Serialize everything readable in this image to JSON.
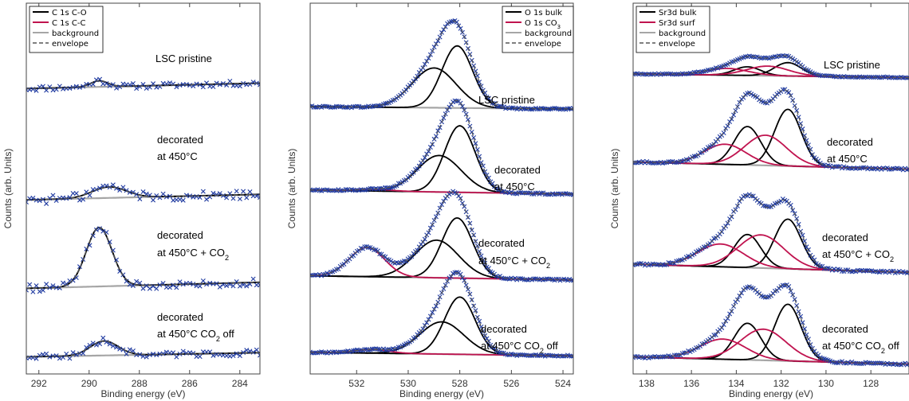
{
  "colors": {
    "peak_black": "#000000",
    "peak_red": "#c0134f",
    "background": "#a6a6a6",
    "envelope": "#555555",
    "data_points": "#1f3aa0",
    "axis": "#444444"
  },
  "chart_data": [
    {
      "type": "scatter",
      "id": "c1s",
      "xlabel": "Binding energy (eV)",
      "ylabel": "Counts (arb. Units)",
      "xlim": [
        292.5,
        283.2
      ],
      "xticks": [
        292,
        290,
        288,
        286,
        284
      ],
      "x_reversed": true,
      "legend": {
        "placement": "top-left",
        "entries": [
          {
            "label": "C 1s C-O",
            "style": "black"
          },
          {
            "label": "C 1s C-C",
            "style": "red"
          },
          {
            "label": "background",
            "style": "gray"
          },
          {
            "label": "envelope",
            "style": "dashed"
          }
        ]
      },
      "spectra": [
        {
          "label_lines": [
            "LSC pristine"
          ],
          "baseline": [
            0.22,
            0.3
          ],
          "noise": 0.04,
          "peaks": [
            {
              "center": 289.6,
              "fwhm": 0.8,
              "height": 0.09,
              "color": "black"
            }
          ]
        },
        {
          "label_lines": [
            "decorated",
            "at 450°C"
          ],
          "baseline": [
            0.12,
            0.18
          ],
          "noise": 0.05,
          "peaks": [
            {
              "center": 289.2,
              "fwhm": 1.6,
              "height": 0.12,
              "color": "black"
            }
          ]
        },
        {
          "label_lines": [
            "decorated",
            "at 450°C + CO2"
          ],
          "baseline": [
            0.08,
            0.16
          ],
          "noise": 0.05,
          "peaks": [
            {
              "center": 289.6,
              "fwhm": 1.2,
              "height": 0.78,
              "color": "black"
            }
          ]
        },
        {
          "label_lines": [
            "decorated",
            "at 450°C CO2 off"
          ],
          "baseline": [
            0.1,
            0.18
          ],
          "noise": 0.06,
          "peaks": [
            {
              "center": 289.4,
              "fwhm": 1.3,
              "height": 0.28,
              "color": "black"
            }
          ]
        }
      ]
    },
    {
      "type": "scatter",
      "id": "o1s",
      "xlabel": "Binding energy (eV)",
      "ylabel": "Counts (arb. Units)",
      "xlim": [
        533.8,
        523.6
      ],
      "xticks": [
        532,
        530,
        528,
        526,
        524
      ],
      "x_reversed": true,
      "legend": {
        "placement": "top-right",
        "entries": [
          {
            "label": "O 1s bulk",
            "style": "black"
          },
          {
            "label": "O 1s CO3",
            "style": "red"
          },
          {
            "label": "background",
            "style": "gray"
          },
          {
            "label": "envelope",
            "style": "dashed"
          }
        ]
      },
      "spectra": [
        {
          "label_lines": [
            "LSC pristine"
          ],
          "baseline": [
            0.06,
            0.03
          ],
          "noise": 0.01,
          "peaks": [
            {
              "center": 528.1,
              "fwhm": 1.4,
              "height": 0.78,
              "color": "black"
            },
            {
              "center": 529.0,
              "fwhm": 2.0,
              "height": 0.5,
              "color": "black"
            }
          ]
        },
        {
          "label_lines": [
            "decorated",
            "at 450°C"
          ],
          "baseline": [
            0.08,
            0.03
          ],
          "noise": 0.01,
          "peaks": [
            {
              "center": 528.0,
              "fwhm": 1.4,
              "height": 0.82,
              "color": "black"
            },
            {
              "center": 528.8,
              "fwhm": 2.0,
              "height": 0.45,
              "color": "black"
            },
            {
              "center": 531.3,
              "fwhm": 1.6,
              "height": 0.02,
              "color": "red"
            }
          ]
        },
        {
          "label_lines": [
            "decorated",
            "at 450°C + CO2"
          ],
          "baseline": [
            0.08,
            0.03
          ],
          "noise": 0.01,
          "peaks": [
            {
              "center": 528.1,
              "fwhm": 1.4,
              "height": 0.72,
              "color": "black"
            },
            {
              "center": 528.9,
              "fwhm": 2.0,
              "height": 0.45,
              "color": "black"
            },
            {
              "center": 531.6,
              "fwhm": 1.6,
              "height": 0.35,
              "color": "red"
            }
          ]
        },
        {
          "label_lines": [
            "decorated",
            "at 450°C CO2 off"
          ],
          "baseline": [
            0.08,
            0.03
          ],
          "noise": 0.01,
          "peaks": [
            {
              "center": 528.0,
              "fwhm": 1.4,
              "height": 0.8,
              "color": "black"
            },
            {
              "center": 528.7,
              "fwhm": 2.0,
              "height": 0.45,
              "color": "black"
            },
            {
              "center": 531.4,
              "fwhm": 1.6,
              "height": 0.05,
              "color": "red"
            }
          ]
        }
      ]
    },
    {
      "type": "scatter",
      "id": "sr3d",
      "xlabel": "Binding energy (eV)",
      "ylabel": "Counts (arb. Units)",
      "xlim": [
        138.6,
        126.3
      ],
      "xticks": [
        138,
        136,
        134,
        132,
        130,
        128,
        126
      ],
      "x_reversed": true,
      "legend": {
        "placement": "top-left",
        "entries": [
          {
            "label": "Sr3d bulk",
            "style": "black"
          },
          {
            "label": "Sr3d surf",
            "style": "red"
          },
          {
            "label": "background",
            "style": "gray"
          },
          {
            "label": "envelope",
            "style": "dashed"
          }
        ]
      },
      "spectra": [
        {
          "label_lines": [
            "LSC pristine"
          ],
          "baseline": [
            0.12,
            0.04
          ],
          "noise": 0.01,
          "peaks": [
            {
              "center": 131.7,
              "fwhm": 1.4,
              "height": 0.28,
              "color": "black"
            },
            {
              "center": 133.5,
              "fwhm": 1.4,
              "height": 0.18,
              "color": "black"
            },
            {
              "center": 132.6,
              "fwhm": 2.2,
              "height": 0.2,
              "color": "red"
            },
            {
              "center": 134.4,
              "fwhm": 2.2,
              "height": 0.14,
              "color": "red"
            }
          ]
        },
        {
          "label_lines": [
            "decorated",
            "at 450°C"
          ],
          "baseline": [
            0.1,
            0.02
          ],
          "noise": 0.01,
          "peaks": [
            {
              "center": 131.7,
              "fwhm": 1.4,
              "height": 0.62,
              "color": "black"
            },
            {
              "center": 133.5,
              "fwhm": 1.4,
              "height": 0.42,
              "color": "black"
            },
            {
              "center": 132.7,
              "fwhm": 2.2,
              "height": 0.33,
              "color": "red"
            },
            {
              "center": 134.5,
              "fwhm": 2.2,
              "height": 0.22,
              "color": "red"
            }
          ]
        },
        {
          "label_lines": [
            "decorated",
            "at 450°C + CO2"
          ],
          "baseline": [
            0.1,
            0.02
          ],
          "noise": 0.01,
          "peaks": [
            {
              "center": 131.7,
              "fwhm": 1.4,
              "height": 0.48,
              "color": "black"
            },
            {
              "center": 133.5,
              "fwhm": 1.4,
              "height": 0.32,
              "color": "black"
            },
            {
              "center": 132.9,
              "fwhm": 2.4,
              "height": 0.32,
              "color": "red"
            },
            {
              "center": 134.7,
              "fwhm": 2.4,
              "height": 0.22,
              "color": "red"
            }
          ]
        },
        {
          "label_lines": [
            "decorated",
            "at 450°C CO2 off"
          ],
          "baseline": [
            0.1,
            0.02
          ],
          "noise": 0.01,
          "peaks": [
            {
              "center": 131.7,
              "fwhm": 1.4,
              "height": 0.62,
              "color": "black"
            },
            {
              "center": 133.5,
              "fwhm": 1.4,
              "height": 0.4,
              "color": "black"
            },
            {
              "center": 132.8,
              "fwhm": 2.4,
              "height": 0.34,
              "color": "red"
            },
            {
              "center": 134.6,
              "fwhm": 2.4,
              "height": 0.22,
              "color": "red"
            }
          ]
        }
      ]
    }
  ]
}
